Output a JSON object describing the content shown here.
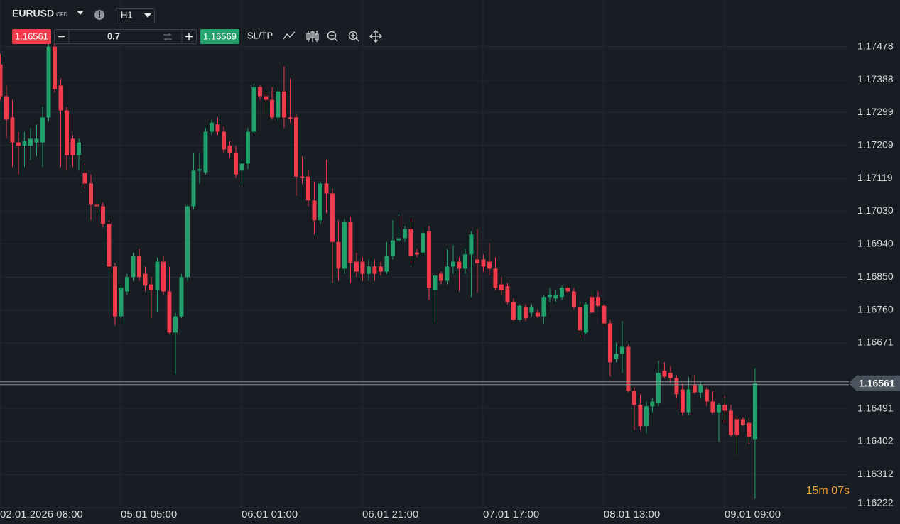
{
  "toolbar": {
    "symbol": "EURUSD",
    "symbol_type": "CFD",
    "timeframe": "H1",
    "sell_price": "1.16561",
    "volume": "0.7",
    "buy_price": "1.16569",
    "sltp": "SL/TP"
  },
  "chart_data": {
    "type": "candlestick",
    "open": [
      1.1743,
      1.17343,
      1.17285,
      1.17217,
      1.17208,
      1.17208,
      1.17217,
      1.17217,
      1.17285,
      1.17478,
      1.17372,
      1.17304,
      1.17227,
      1.17182,
      1.17134,
      1.17105,
      1.17047,
      1.17043,
      1.16995,
      1.16879,
      1.16743,
      1.16811,
      1.1685,
      1.16908,
      1.16859,
      1.1683,
      1.16815,
      1.16892,
      1.16811,
      1.16699,
      1.16743,
      1.1685,
      1.17043,
      1.1714,
      1.17136,
      1.17246,
      1.17266,
      1.17246,
      1.17208,
      1.17188,
      1.1714,
      1.17159,
      1.17246,
      1.17368,
      1.17343,
      1.17333,
      1.17285,
      1.17356,
      1.17285,
      1.17285,
      1.17124,
      1.17124,
      1.17059,
      1.17005,
      1.17105,
      1.17078,
      1.16946,
      1.16873,
      1.17001,
      1.16892,
      1.16892,
      1.16859,
      1.16879,
      1.16879,
      1.16865,
      1.16908,
      1.1695,
      1.16956,
      1.16981,
      1.16917,
      1.16917,
      1.16975,
      1.16815,
      1.16859,
      1.1684,
      1.16879,
      1.16892,
      1.16873,
      1.16912,
      1.16898,
      1.16898,
      1.16892,
      1.16873,
      1.1683,
      1.16825,
      1.16782,
      1.16734,
      1.16769,
      1.16753,
      1.16753,
      1.16743,
      1.16796,
      1.16792,
      1.16796,
      1.16821,
      1.16811,
      1.16769,
      1.16699,
      1.16796,
      1.16796,
      1.16772,
      1.16724,
      1.16627,
      1.16641,
      1.1666,
      1.1654,
      1.16502,
      1.16444,
      1.16498,
      1.16506,
      1.16595,
      1.16589,
      1.16575,
      1.16544,
      1.16482,
      1.16556,
      1.16536,
      1.16544,
      1.16511,
      1.16482,
      1.16502,
      1.16486,
      1.16463,
      1.16463,
      1.16453,
      1.16409
    ],
    "high": [
      1.17459,
      1.17372,
      1.17333,
      1.17246,
      1.17246,
      1.17256,
      1.17266,
      1.17314,
      1.17498,
      1.17498,
      1.17391,
      1.17314,
      1.17237,
      1.17227,
      1.17159,
      1.1713,
      1.17063,
      1.17053,
      1.17005,
      1.16888,
      1.1683,
      1.16859,
      1.16917,
      1.16927,
      1.16879,
      1.1685,
      1.16904,
      1.16908,
      1.16879,
      1.16753,
      1.16859,
      1.17047,
      1.17188,
      1.17188,
      1.17256,
      1.17279,
      1.17285,
      1.1726,
      1.17221,
      1.17208,
      1.17169,
      1.17256,
      1.17376,
      1.17372,
      1.17356,
      1.17368,
      1.17368,
      1.17424,
      1.17391,
      1.17295,
      1.17179,
      1.1714,
      1.17111,
      1.17111,
      1.17169,
      1.17092,
      1.17005,
      1.17008,
      1.17014,
      1.16917,
      1.16904,
      1.16898,
      1.16898,
      1.16892,
      1.16946,
      1.17005,
      1.1702,
      1.16989,
      1.17008,
      1.16927,
      1.16985,
      1.16989,
      1.16859,
      1.16865,
      1.16927,
      1.16937,
      1.16904,
      1.16927,
      1.16975,
      1.16981,
      1.16912,
      1.16943,
      1.16904,
      1.1685,
      1.16834,
      1.16792,
      1.16776,
      1.16776,
      1.16776,
      1.16763,
      1.16801,
      1.16821,
      1.16815,
      1.16827,
      1.16827,
      1.16821,
      1.16782,
      1.16782,
      1.16815,
      1.16811,
      1.16776,
      1.16734,
      1.16672,
      1.1673,
      1.16666,
      1.1655,
      1.16531,
      1.16511,
      1.16521,
      1.16622,
      1.16618,
      1.16608,
      1.16583,
      1.1656,
      1.16579,
      1.16583,
      1.16564,
      1.1655,
      1.1654,
      1.16506,
      1.16525,
      1.16502,
      1.16473,
      1.16467,
      1.16467,
      1.16602
    ],
    "low": [
      1.17333,
      1.17227,
      1.1715,
      1.1713,
      1.1715,
      1.17169,
      1.17179,
      1.1715,
      1.17275,
      1.17353,
      1.1715,
      1.1714,
      1.1715,
      1.1714,
      1.17092,
      1.17005,
      1.17024,
      1.16985,
      1.16869,
      1.16718,
      1.16724,
      1.16801,
      1.1684,
      1.1684,
      1.16811,
      1.16738,
      1.16753,
      1.16801,
      1.16695,
      1.16585,
      1.16738,
      1.1684,
      1.17034,
      1.17105,
      1.1713,
      1.17237,
      1.17237,
      1.17188,
      1.17175,
      1.17121,
      1.17105,
      1.17144,
      1.1724,
      1.17333,
      1.17295,
      1.17279,
      1.17275,
      1.17256,
      1.17271,
      1.17072,
      1.17105,
      1.17043,
      1.16966,
      1.16995,
      1.17024,
      1.16834,
      1.1684,
      1.16859,
      1.16834,
      1.1685,
      1.1684,
      1.1684,
      1.1684,
      1.16854,
      1.16859,
      1.16898,
      1.16946,
      1.16946,
      1.16888,
      1.16904,
      1.16908,
      1.16788,
      1.16724,
      1.1683,
      1.1683,
      1.16859,
      1.16811,
      1.16859,
      1.16796,
      1.16807,
      1.16865,
      1.16854,
      1.16815,
      1.16801,
      1.16776,
      1.1673,
      1.1673,
      1.1673,
      1.16743,
      1.16738,
      1.16724,
      1.16782,
      1.16782,
      1.16788,
      1.16807,
      1.16763,
      1.16685,
      1.16695,
      1.16753,
      1.16769,
      1.16714,
      1.16579,
      1.16618,
      1.16589,
      1.16536,
      1.16434,
      1.16434,
      1.16424,
      1.16482,
      1.16498,
      1.16575,
      1.1656,
      1.16521,
      1.16473,
      1.16473,
      1.16531,
      1.16521,
      1.16498,
      1.16478,
      1.16401,
      1.16453,
      1.16415,
      1.16366,
      1.16444,
      1.16395,
      1.16246
    ],
    "close": [
      1.17343,
      1.17279,
      1.17217,
      1.17208,
      1.17221,
      1.17227,
      1.17227,
      1.17285,
      1.17478,
      1.17362,
      1.17304,
      1.17182,
      1.17182,
      1.17217,
      1.17105,
      1.17047,
      1.17043,
      1.16995,
      1.16879,
      1.16743,
      1.16821,
      1.1685,
      1.16908,
      1.1685,
      1.16827,
      1.16815,
      1.16892,
      1.16811,
      1.16699,
      1.16743,
      1.1685,
      1.17043,
      1.1714,
      1.17144,
      1.17246,
      1.17271,
      1.17246,
      1.17198,
      1.17188,
      1.1713,
      1.17159,
      1.17246,
      1.17368,
      1.17343,
      1.17333,
      1.17285,
      1.17356,
      1.17285,
      1.17281,
      1.17124,
      1.17121,
      1.17059,
      1.17005,
      1.17105,
      1.17078,
      1.16946,
      1.16873,
      1.17001,
      1.16888,
      1.16865,
      1.16859,
      1.16879,
      1.16859,
      1.16865,
      1.16908,
      1.1695,
      1.16956,
      1.16981,
      1.16908,
      1.16912,
      1.1697,
      1.16821,
      1.16854,
      1.1684,
      1.16879,
      1.16892,
      1.16873,
      1.16912,
      1.16966,
      1.16888,
      1.16879,
      1.16873,
      1.16821,
      1.16815,
      1.16782,
      1.16734,
      1.16772,
      1.16738,
      1.16769,
      1.16743,
      1.16796,
      1.16801,
      1.16801,
      1.16821,
      1.16811,
      1.16769,
      1.16705,
      1.16776,
      1.16753,
      1.16772,
      1.16724,
      1.16618,
      1.16641,
      1.1666,
      1.1654,
      1.16502,
      1.16444,
      1.16498,
      1.16511,
      1.16589,
      1.16579,
      1.16575,
      1.16531,
      1.16482,
      1.16544,
      1.16536,
      1.16556,
      1.16511,
      1.16482,
      1.16502,
      1.16486,
      1.1642,
      1.1642,
      1.16447,
      1.16415,
      1.16561
    ],
    "up_color": "#22a06b",
    "down_color": "#ef3b4b",
    "xlim": [
      0,
      140.6
    ],
    "xticks": [
      {
        "value": 0,
        "label": "02.01.2026 08:00"
      },
      {
        "value": 20,
        "label": "05.01 05:00"
      },
      {
        "value": 40,
        "label": "06.01 01:00"
      },
      {
        "value": 60,
        "label": "06.01 21:00"
      },
      {
        "value": 80,
        "label": "07.01 17:00"
      },
      {
        "value": 100,
        "label": "08.01 13:00"
      },
      {
        "value": 120,
        "label": "09.01 09:00"
      }
    ],
    "ylim": [
      1.16222,
      1.17605
    ],
    "yticks": [
      1.17478,
      1.17388,
      1.17299,
      1.17209,
      1.17119,
      {
        "value": 1.1703,
        "label": "1.17030"
      },
      {
        "value": 1.1694,
        "label": "1.16940"
      },
      {
        "value": 1.1685,
        "label": "1.16850"
      },
      {
        "value": 1.1676,
        "label": "1.16760"
      },
      1.16671,
      1.16491,
      1.16402,
      1.16312,
      1.16222
    ],
    "grid": true,
    "current_price": 1.16561,
    "timer": "15m 07s"
  }
}
